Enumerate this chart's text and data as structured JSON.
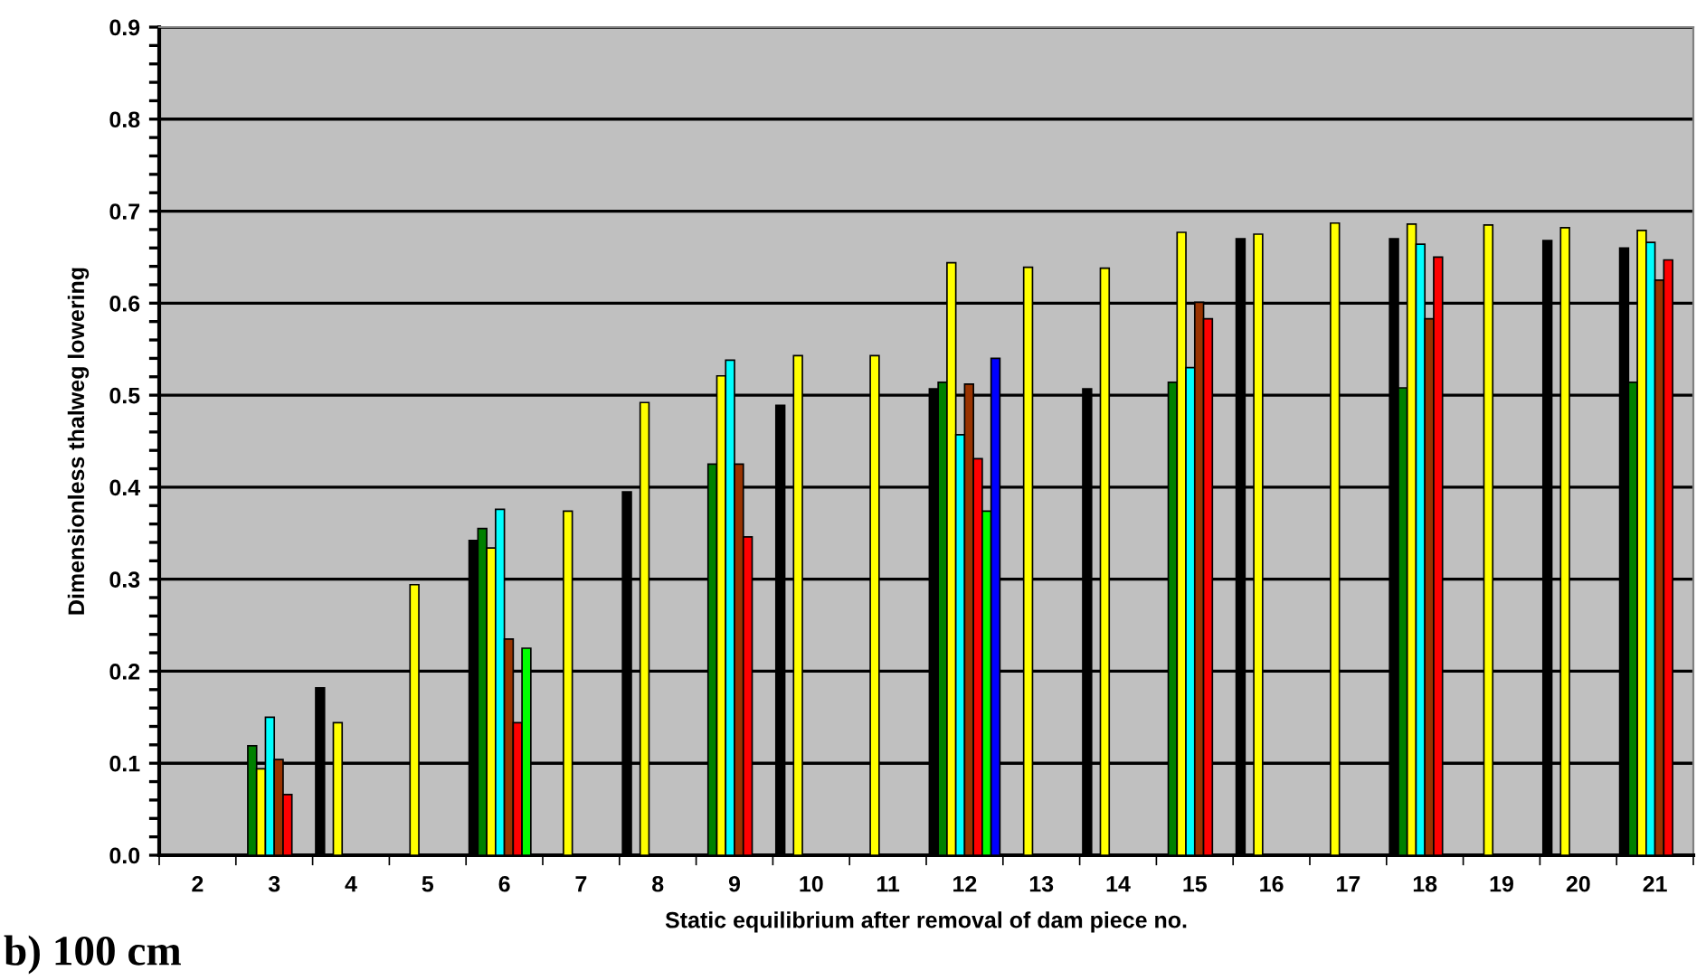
{
  "chart_data": {
    "type": "bar",
    "xlabel": "Static equilibrium after removal of dam piece no.",
    "ylabel": "Dimensionless thalweg lowering",
    "categories": [
      "2",
      "3",
      "4",
      "5",
      "6",
      "7",
      "8",
      "9",
      "10",
      "11",
      "12",
      "13",
      "14",
      "15",
      "16",
      "17",
      "18",
      "19",
      "20",
      "21"
    ],
    "series": [
      {
        "color": "#000000",
        "values": [
          null,
          null,
          0.182,
          null,
          0.342,
          null,
          0.395,
          null,
          0.489,
          null,
          0.507,
          null,
          0.507,
          null,
          0.67,
          null,
          0.67,
          null,
          0.668,
          0.66
        ]
      },
      {
        "color": "#008000",
        "values": [
          null,
          0.119,
          null,
          null,
          0.355,
          null,
          null,
          0.425,
          null,
          null,
          0.514,
          null,
          null,
          0.514,
          null,
          null,
          0.508,
          null,
          null,
          0.514
        ]
      },
      {
        "color": "#ffff00",
        "values": [
          null,
          0.094,
          0.144,
          0.294,
          0.334,
          0.374,
          0.492,
          0.521,
          0.543,
          0.543,
          0.644,
          0.639,
          0.638,
          0.677,
          0.675,
          0.687,
          0.686,
          0.685,
          0.682,
          0.679
        ]
      },
      {
        "color": "#00ffff",
        "values": [
          null,
          0.15,
          null,
          null,
          0.376,
          null,
          null,
          0.538,
          null,
          null,
          0.457,
          null,
          null,
          0.53,
          null,
          null,
          0.664,
          null,
          null,
          0.666
        ]
      },
      {
        "color": "#993300",
        "values": [
          null,
          0.104,
          null,
          null,
          0.235,
          null,
          null,
          0.425,
          null,
          null,
          0.512,
          null,
          null,
          0.601,
          null,
          null,
          0.583,
          null,
          null,
          0.625
        ]
      },
      {
        "color": "#ff0000",
        "values": [
          null,
          0.066,
          null,
          null,
          0.144,
          null,
          null,
          0.346,
          null,
          null,
          0.431,
          null,
          null,
          0.583,
          null,
          null,
          0.65,
          null,
          null,
          0.647
        ]
      },
      {
        "color": "#00ff00",
        "values": [
          null,
          null,
          null,
          null,
          0.225,
          null,
          null,
          null,
          null,
          null,
          0.374,
          null,
          null,
          null,
          null,
          null,
          null,
          null,
          null,
          null
        ]
      },
      {
        "color": "#0000ff",
        "values": [
          null,
          null,
          null,
          null,
          null,
          null,
          null,
          null,
          null,
          null,
          0.54,
          null,
          null,
          null,
          null,
          null,
          null,
          null,
          null,
          null
        ]
      }
    ],
    "ylim": [
      0,
      0.9
    ],
    "yticks": [
      {
        "value": 0,
        "label": "0.0"
      },
      0.1,
      0.2,
      0.3,
      0.4,
      0.5,
      0.6,
      0.7,
      0.8,
      0.9
    ],
    "grid": "y",
    "annotations": [
      "b) 100 cm"
    ]
  }
}
